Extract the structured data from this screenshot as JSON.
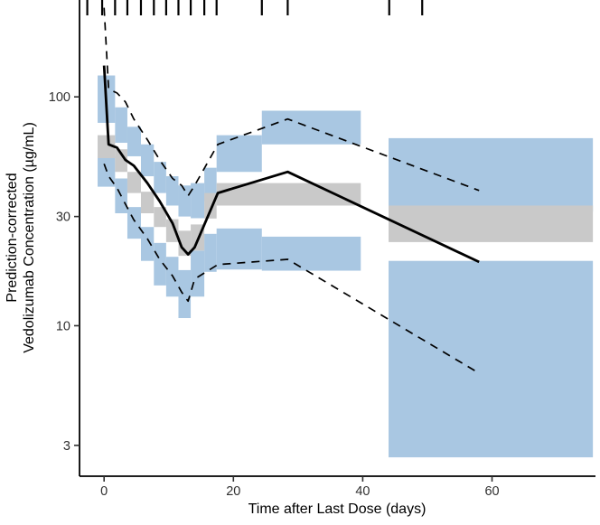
{
  "chart_data": {
    "type": "area",
    "subtype": "visual-predictive-check",
    "title": "",
    "xlabel": "Time after Last Dose (days)",
    "ylabel_line1": "Prediction-corrected",
    "ylabel_line2": "Vedolizumab Concentration (µg/mL)",
    "x_ticks": [
      0,
      20,
      40,
      60
    ],
    "y_ticks": [
      3,
      10,
      30,
      100
    ],
    "y_scale": "log10",
    "xlim": [
      -3.8,
      76
    ],
    "ylim": [
      2.2,
      265
    ],
    "grid": "off",
    "legend": "none",
    "rug_times_days": [
      -2.6,
      -0.3,
      1.7,
      3.6,
      5.7,
      7.7,
      9.6,
      11.5,
      13.4,
      15.5,
      17.4,
      24.4,
      28.4,
      44.1,
      49.2
    ],
    "series": {
      "observed_median": {
        "style": "solid",
        "x": [
          0,
          0.7,
          2,
          3.3,
          4.6,
          6.7,
          8.6,
          10.6,
          12,
          13,
          14,
          17.6,
          28.4,
          58
        ],
        "y": [
          137,
          62,
          60,
          53,
          50,
          42,
          35,
          28,
          22,
          20.5,
          22,
          38,
          47,
          19
        ]
      },
      "observed_p95": {
        "style": "dashed",
        "x": [
          0,
          0.7,
          2,
          3.3,
          4.6,
          6.7,
          8.6,
          10.6,
          12,
          13,
          14,
          17.6,
          28.4,
          58
        ],
        "y": [
          245,
          108,
          104,
          95,
          80,
          65,
          53,
          44,
          41,
          37,
          41,
          62,
          80,
          39
        ]
      },
      "observed_p05": {
        "style": "dashed",
        "x": [
          0,
          0.7,
          2,
          3.3,
          4.6,
          6.7,
          8.6,
          10.6,
          12,
          13,
          14,
          17.6,
          28.4,
          58
        ],
        "y": [
          51,
          45,
          40,
          34,
          29,
          24,
          19.5,
          16.5,
          14,
          12.8,
          16,
          18.5,
          19.5,
          6.2
        ]
      }
    },
    "ribbons": {
      "p95_ci_blue": [
        {
          "t0": -1,
          "t1": 1.7,
          "lo": 77,
          "hi": 124
        },
        {
          "t0": 1.7,
          "t1": 3.6,
          "lo": 63,
          "hi": 90
        },
        {
          "t0": 3.6,
          "t1": 5.7,
          "lo": 55,
          "hi": 74
        },
        {
          "t0": 5.7,
          "t1": 7.7,
          "lo": 45,
          "hi": 62
        },
        {
          "t0": 7.7,
          "t1": 9.6,
          "lo": 38,
          "hi": 52
        },
        {
          "t0": 9.6,
          "t1": 11.5,
          "lo": 33.5,
          "hi": 45
        },
        {
          "t0": 11.5,
          "t1": 13.4,
          "lo": 30,
          "hi": 41
        },
        {
          "t0": 13.4,
          "t1": 15.5,
          "lo": 29.5,
          "hi": 42
        },
        {
          "t0": 15.5,
          "t1": 17.4,
          "lo": 35,
          "hi": 49
        },
        {
          "t0": 17.4,
          "t1": 24.4,
          "lo": 47,
          "hi": 68
        },
        {
          "t0": 24.4,
          "t1": 39.7,
          "lo": 62,
          "hi": 87
        },
        {
          "t0": 44,
          "t1": 75.6,
          "lo": 31.5,
          "hi": 66
        }
      ],
      "median_ci_gray": [
        {
          "t0": -1,
          "t1": 1.7,
          "lo": 54,
          "hi": 68
        },
        {
          "t0": 1.7,
          "t1": 3.6,
          "lo": 47,
          "hi": 59
        },
        {
          "t0": 3.6,
          "t1": 5.7,
          "lo": 38,
          "hi": 47
        },
        {
          "t0": 5.7,
          "t1": 7.7,
          "lo": 31,
          "hi": 38.5
        },
        {
          "t0": 7.7,
          "t1": 9.6,
          "lo": 27,
          "hi": 33
        },
        {
          "t0": 9.6,
          "t1": 11.5,
          "lo": 23.2,
          "hi": 29.2
        },
        {
          "t0": 11.5,
          "t1": 13.4,
          "lo": 20.2,
          "hi": 26
        },
        {
          "t0": 13.4,
          "t1": 15.5,
          "lo": 21.3,
          "hi": 27.7
        },
        {
          "t0": 15.5,
          "t1": 17.4,
          "lo": 29.4,
          "hi": 38
        },
        {
          "t0": 17.4,
          "t1": 39.7,
          "lo": 33.5,
          "hi": 42
        },
        {
          "t0": 44,
          "t1": 75.6,
          "lo": 23.2,
          "hi": 33.5
        }
      ],
      "p05_ci_blue": [
        {
          "t0": -1,
          "t1": 1.7,
          "lo": 40.5,
          "hi": 55
        },
        {
          "t0": 1.7,
          "t1": 3.6,
          "lo": 31,
          "hi": 44
        },
        {
          "t0": 3.6,
          "t1": 5.7,
          "lo": 24,
          "hi": 33
        },
        {
          "t0": 5.7,
          "t1": 7.7,
          "lo": 19.2,
          "hi": 27
        },
        {
          "t0": 7.7,
          "t1": 9.6,
          "lo": 15,
          "hi": 23
        },
        {
          "t0": 9.6,
          "t1": 11.5,
          "lo": 13.4,
          "hi": 20
        },
        {
          "t0": 11.5,
          "t1": 13.4,
          "lo": 10.8,
          "hi": 17.5
        },
        {
          "t0": 13.4,
          "t1": 15.5,
          "lo": 13.4,
          "hi": 21.3
        },
        {
          "t0": 15.5,
          "t1": 17.4,
          "lo": 17.2,
          "hi": 25.2
        },
        {
          "t0": 17.4,
          "t1": 24.4,
          "lo": 17.6,
          "hi": 26.6
        },
        {
          "t0": 24.4,
          "t1": 39.7,
          "lo": 17.4,
          "hi": 24.5
        },
        {
          "t0": 44,
          "t1": 75.6,
          "lo": 2.66,
          "hi": 19.2
        }
      ]
    },
    "colors": {
      "ribbon_blue": "#a9c7e2",
      "ribbon_gray": "#c9c9c9",
      "line": "#000000",
      "axis": "#000000",
      "tick_text": "#303030",
      "background": "#ffffff"
    }
  }
}
